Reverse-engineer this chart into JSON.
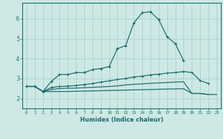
{
  "background_color": "#cde8e5",
  "grid_color": "#afd4d0",
  "line_color": "#1a6b6b",
  "xlabel": "Humidex (Indice chaleur)",
  "xlim": [
    -0.5,
    23.5
  ],
  "ylim": [
    1.5,
    6.8
  ],
  "yticks": [
    2,
    3,
    4,
    5,
    6
  ],
  "xticks": [
    0,
    1,
    2,
    3,
    4,
    5,
    6,
    7,
    8,
    9,
    10,
    11,
    12,
    13,
    14,
    15,
    16,
    17,
    18,
    19,
    20,
    21,
    22,
    23
  ],
  "line1_x": [
    0,
    1,
    2,
    3,
    4,
    5,
    6,
    7,
    8,
    9,
    10,
    11,
    12,
    13,
    14,
    15,
    16,
    17,
    18,
    19
  ],
  "line1_y": [
    2.6,
    2.6,
    2.35,
    2.85,
    3.2,
    3.2,
    3.3,
    3.3,
    3.45,
    3.5,
    3.6,
    4.5,
    4.65,
    5.8,
    6.3,
    6.35,
    5.95,
    5.1,
    4.75,
    3.9
  ],
  "line2_x": [
    0,
    1,
    2,
    3,
    4,
    5,
    6,
    7,
    8,
    9,
    10,
    11,
    12,
    13,
    14,
    15,
    16,
    17,
    18,
    19,
    20,
    21,
    22
  ],
  "line2_y": [
    2.6,
    2.6,
    2.35,
    2.55,
    2.6,
    2.62,
    2.65,
    2.7,
    2.75,
    2.82,
    2.88,
    2.95,
    3.0,
    3.08,
    3.12,
    3.18,
    3.22,
    3.27,
    3.3,
    3.35,
    3.3,
    2.9,
    2.75
  ],
  "line3_x": [
    0,
    1,
    2,
    3,
    4,
    5,
    6,
    7,
    8,
    9,
    10,
    11,
    12,
    13,
    14,
    15,
    16,
    17,
    18,
    19,
    20,
    21,
    22
  ],
  "line3_y": [
    2.6,
    2.6,
    2.35,
    2.45,
    2.5,
    2.51,
    2.52,
    2.54,
    2.56,
    2.58,
    2.6,
    2.63,
    2.68,
    2.71,
    2.73,
    2.76,
    2.78,
    2.8,
    2.82,
    2.84,
    2.25,
    2.25,
    2.2
  ],
  "line4_x": [
    2,
    3,
    4,
    5,
    6,
    7,
    8,
    9,
    10,
    11,
    12,
    13,
    14,
    15,
    16,
    17,
    18,
    19,
    20,
    21,
    22,
    23
  ],
  "line4_y": [
    2.35,
    2.35,
    2.35,
    2.35,
    2.36,
    2.37,
    2.38,
    2.39,
    2.4,
    2.41,
    2.42,
    2.43,
    2.44,
    2.45,
    2.46,
    2.47,
    2.48,
    2.49,
    2.25,
    2.25,
    2.2,
    2.2
  ]
}
